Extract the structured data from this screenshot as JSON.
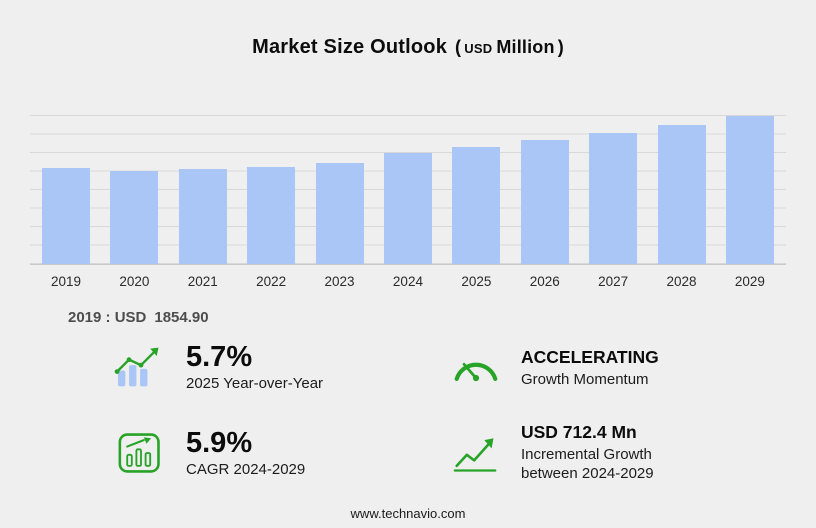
{
  "title": {
    "main": "Market Size Outlook",
    "paren_open": "(",
    "currency": "USD",
    "unit": "Million",
    "paren_close": ")"
  },
  "chart_data": {
    "type": "bar",
    "title": "Market Size Outlook (USD Million)",
    "categories": [
      "2019",
      "2020",
      "2021",
      "2022",
      "2023",
      "2024",
      "2025",
      "2026",
      "2027",
      "2028",
      "2029"
    ],
    "values": [
      1854.9,
      1800.2,
      1838.5,
      1884.7,
      1948.6,
      2147.9,
      2270.3,
      2399.7,
      2538.3,
      2692.1,
      2860.3
    ],
    "xlabel": "",
    "ylabel": "",
    "ylim": [
      0,
      2900
    ],
    "grid": true,
    "legend": false
  },
  "annotation": {
    "label": "2019 : USD",
    "value": "1854.90"
  },
  "stats": [
    {
      "icon": "yoy-bars-icon",
      "value": "5.7%",
      "label": "2025 Year-over-Year"
    },
    {
      "icon": "speedometer-icon",
      "value": "ACCELERATING",
      "label": "Growth Momentum"
    },
    {
      "icon": "cagr-chart-icon",
      "value": "5.9%",
      "label": "CAGR 2024-2029"
    },
    {
      "icon": "incremental-growth-icon",
      "value": "USD 712.4 Mn",
      "label": "Incremental Growth between 2024-2029"
    }
  ],
  "footer": {
    "url": "www.technavio.com"
  },
  "colors": {
    "accent_green": "#27a327",
    "bar_fill": "#a9c6f7",
    "background": "#efefef"
  }
}
